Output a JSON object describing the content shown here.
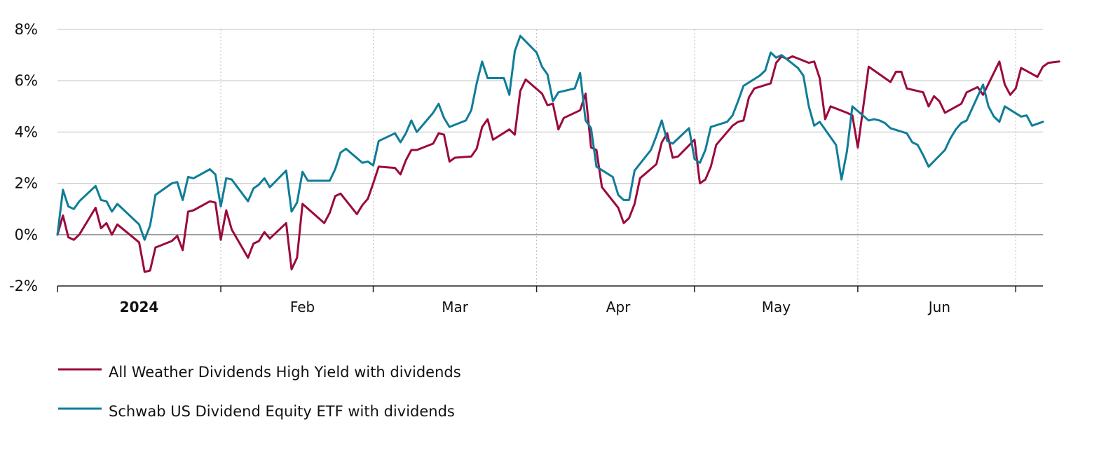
{
  "chart_data": {
    "type": "line",
    "title": "",
    "xlabel": "",
    "ylabel": "",
    "ylim": [
      -2,
      8
    ],
    "y_ticks": [
      {
        "value": 8,
        "label": "8%"
      },
      {
        "value": 6,
        "label": "6%"
      },
      {
        "value": 4,
        "label": "4%"
      },
      {
        "value": 2,
        "label": "2%"
      },
      {
        "value": 0,
        "label": "0%"
      },
      {
        "value": -2,
        "label": "-2%"
      }
    ],
    "x_day_range": [
      0,
      181
    ],
    "x_ticks": [
      {
        "day": 0,
        "label": "",
        "bold": false
      },
      {
        "day": 30,
        "label": "",
        "bold": false
      },
      {
        "day": 58,
        "label": "",
        "bold": false
      },
      {
        "day": 88,
        "label": "",
        "bold": false
      },
      {
        "day": 117,
        "label": "",
        "bold": false
      },
      {
        "day": 147,
        "label": "",
        "bold": false
      },
      {
        "day": 176,
        "label": "",
        "bold": false
      }
    ],
    "x_labels": [
      {
        "day": 15,
        "label": "2024",
        "bold": true
      },
      {
        "day": 45,
        "label": "Feb",
        "bold": false
      },
      {
        "day": 73,
        "label": "Mar",
        "bold": false
      },
      {
        "day": 103,
        "label": "Apr",
        "bold": false
      },
      {
        "day": 132,
        "label": "May",
        "bold": false
      },
      {
        "day": 162,
        "label": "Jun",
        "bold": false
      }
    ],
    "series": [
      {
        "name": "All Weather Dividends High Yield with dividends",
        "color": "#9b0a3e",
        "points": [
          [
            0,
            0.0
          ],
          [
            1,
            0.75
          ],
          [
            2,
            -0.1
          ],
          [
            3,
            -0.2
          ],
          [
            4,
            0.0
          ],
          [
            7,
            1.05
          ],
          [
            8,
            0.25
          ],
          [
            9,
            0.45
          ],
          [
            10,
            0.0
          ],
          [
            11,
            0.4
          ],
          [
            15,
            -0.3
          ],
          [
            16,
            -1.45
          ],
          [
            17,
            -1.4
          ],
          [
            18,
            -0.5
          ],
          [
            21,
            -0.25
          ],
          [
            22,
            -0.05
          ],
          [
            23,
            -0.6
          ],
          [
            24,
            0.9
          ],
          [
            25,
            0.95
          ],
          [
            28,
            1.3
          ],
          [
            29,
            1.25
          ],
          [
            30,
            -0.2
          ],
          [
            31,
            0.95
          ],
          [
            32,
            0.2
          ],
          [
            35,
            -0.9
          ],
          [
            36,
            -0.35
          ],
          [
            37,
            -0.25
          ],
          [
            38,
            0.1
          ],
          [
            39,
            -0.15
          ],
          [
            42,
            0.45
          ],
          [
            43,
            -1.35
          ],
          [
            44,
            -0.9
          ],
          [
            45,
            1.2
          ],
          [
            49,
            0.45
          ],
          [
            50,
            0.85
          ],
          [
            51,
            1.5
          ],
          [
            52,
            1.6
          ],
          [
            55,
            0.8
          ],
          [
            56,
            1.15
          ],
          [
            57,
            1.4
          ],
          [
            58,
            2.0
          ],
          [
            59,
            2.65
          ],
          [
            62,
            2.6
          ],
          [
            63,
            2.35
          ],
          [
            64,
            2.9
          ],
          [
            65,
            3.3
          ],
          [
            66,
            3.3
          ],
          [
            69,
            3.55
          ],
          [
            70,
            3.95
          ],
          [
            71,
            3.9
          ],
          [
            72,
            2.85
          ],
          [
            73,
            3.0
          ],
          [
            76,
            3.05
          ],
          [
            77,
            3.35
          ],
          [
            78,
            4.2
          ],
          [
            79,
            4.5
          ],
          [
            80,
            3.7
          ],
          [
            83,
            4.1
          ],
          [
            84,
            3.9
          ],
          [
            85,
            5.6
          ],
          [
            86,
            6.05
          ],
          [
            89,
            5.5
          ],
          [
            90,
            5.05
          ],
          [
            91,
            5.1
          ],
          [
            92,
            4.1
          ],
          [
            93,
            4.55
          ],
          [
            96,
            4.85
          ],
          [
            97,
            5.5
          ],
          [
            98,
            3.4
          ],
          [
            99,
            3.3
          ],
          [
            100,
            1.85
          ],
          [
            103,
            1.05
          ],
          [
            104,
            0.45
          ],
          [
            105,
            0.65
          ],
          [
            106,
            1.2
          ],
          [
            107,
            2.2
          ],
          [
            110,
            2.75
          ],
          [
            111,
            3.6
          ],
          [
            112,
            3.95
          ],
          [
            113,
            3.0
          ],
          [
            114,
            3.05
          ],
          [
            117,
            3.7
          ],
          [
            118,
            2.0
          ],
          [
            119,
            2.15
          ],
          [
            120,
            2.65
          ],
          [
            121,
            3.5
          ],
          [
            124,
            4.25
          ],
          [
            125,
            4.4
          ],
          [
            126,
            4.45
          ],
          [
            127,
            5.35
          ],
          [
            128,
            5.7
          ],
          [
            131,
            5.9
          ],
          [
            132,
            6.7
          ],
          [
            133,
            6.95
          ],
          [
            134,
            6.85
          ],
          [
            135,
            6.95
          ],
          [
            138,
            6.7
          ],
          [
            139,
            6.75
          ],
          [
            140,
            6.1
          ],
          [
            141,
            4.5
          ],
          [
            142,
            5.0
          ],
          [
            145,
            4.75
          ],
          [
            146,
            4.65
          ],
          [
            147,
            3.4
          ],
          [
            149,
            6.55
          ],
          [
            152,
            6.1
          ],
          [
            153,
            5.95
          ],
          [
            154,
            6.35
          ],
          [
            155,
            6.35
          ],
          [
            156,
            5.7
          ],
          [
            159,
            5.55
          ],
          [
            160,
            5.0
          ],
          [
            161,
            5.4
          ],
          [
            162,
            5.2
          ],
          [
            163,
            4.75
          ],
          [
            166,
            5.1
          ],
          [
            167,
            5.55
          ],
          [
            168,
            5.65
          ],
          [
            169,
            5.75
          ],
          [
            170,
            5.45
          ],
          [
            173,
            6.75
          ],
          [
            174,
            5.85
          ],
          [
            175,
            5.45
          ],
          [
            176,
            5.7
          ],
          [
            177,
            6.5
          ],
          [
            180,
            6.15
          ],
          [
            181,
            6.55
          ],
          [
            182,
            6.7
          ],
          [
            184,
            6.75
          ]
        ]
      },
      {
        "name": "Schwab US Dividend Equity ETF with dividends",
        "color": "#0f7d98",
        "points": [
          [
            0,
            0.0
          ],
          [
            1,
            1.75
          ],
          [
            2,
            1.1
          ],
          [
            3,
            1.0
          ],
          [
            4,
            1.3
          ],
          [
            7,
            1.9
          ],
          [
            8,
            1.35
          ],
          [
            9,
            1.3
          ],
          [
            10,
            0.9
          ],
          [
            11,
            1.2
          ],
          [
            15,
            0.4
          ],
          [
            16,
            -0.2
          ],
          [
            17,
            0.35
          ],
          [
            18,
            1.55
          ],
          [
            21,
            2.0
          ],
          [
            22,
            2.05
          ],
          [
            23,
            1.35
          ],
          [
            24,
            2.25
          ],
          [
            25,
            2.2
          ],
          [
            28,
            2.55
          ],
          [
            29,
            2.35
          ],
          [
            30,
            1.1
          ],
          [
            31,
            2.2
          ],
          [
            32,
            2.15
          ],
          [
            35,
            1.3
          ],
          [
            36,
            1.8
          ],
          [
            37,
            1.95
          ],
          [
            38,
            2.2
          ],
          [
            39,
            1.85
          ],
          [
            42,
            2.5
          ],
          [
            43,
            0.9
          ],
          [
            44,
            1.25
          ],
          [
            45,
            2.45
          ],
          [
            46,
            2.1
          ],
          [
            50,
            2.1
          ],
          [
            51,
            2.55
          ],
          [
            52,
            3.2
          ],
          [
            53,
            3.35
          ],
          [
            56,
            2.8
          ],
          [
            57,
            2.85
          ],
          [
            58,
            2.7
          ],
          [
            59,
            3.65
          ],
          [
            62,
            3.95
          ],
          [
            63,
            3.6
          ],
          [
            64,
            3.95
          ],
          [
            65,
            4.45
          ],
          [
            66,
            4.0
          ],
          [
            69,
            4.75
          ],
          [
            70,
            5.1
          ],
          [
            71,
            4.55
          ],
          [
            72,
            4.2
          ],
          [
            75,
            4.45
          ],
          [
            76,
            4.85
          ],
          [
            77,
            5.9
          ],
          [
            78,
            6.75
          ],
          [
            79,
            6.1
          ],
          [
            82,
            6.1
          ],
          [
            83,
            5.45
          ],
          [
            84,
            7.15
          ],
          [
            85,
            7.75
          ],
          [
            88,
            7.1
          ],
          [
            89,
            6.55
          ],
          [
            90,
            6.25
          ],
          [
            91,
            5.2
          ],
          [
            92,
            5.55
          ],
          [
            95,
            5.7
          ],
          [
            96,
            6.3
          ],
          [
            97,
            4.45
          ],
          [
            98,
            4.15
          ],
          [
            99,
            2.65
          ],
          [
            102,
            2.25
          ],
          [
            103,
            1.55
          ],
          [
            104,
            1.35
          ],
          [
            105,
            1.35
          ],
          [
            106,
            2.5
          ],
          [
            109,
            3.3
          ],
          [
            110,
            3.85
          ],
          [
            111,
            4.45
          ],
          [
            112,
            3.65
          ],
          [
            113,
            3.55
          ],
          [
            116,
            4.15
          ],
          [
            117,
            2.95
          ],
          [
            118,
            2.8
          ],
          [
            119,
            3.3
          ],
          [
            120,
            4.2
          ],
          [
            123,
            4.4
          ],
          [
            124,
            4.65
          ],
          [
            125,
            5.2
          ],
          [
            126,
            5.8
          ],
          [
            129,
            6.2
          ],
          [
            130,
            6.4
          ],
          [
            131,
            7.1
          ],
          [
            132,
            6.9
          ],
          [
            133,
            7.0
          ],
          [
            136,
            6.5
          ],
          [
            137,
            6.2
          ],
          [
            138,
            5.0
          ],
          [
            139,
            4.25
          ],
          [
            140,
            4.4
          ],
          [
            143,
            3.5
          ],
          [
            144,
            2.15
          ],
          [
            145,
            3.25
          ],
          [
            146,
            5.0
          ],
          [
            149,
            4.45
          ],
          [
            150,
            4.5
          ],
          [
            151,
            4.45
          ],
          [
            152,
            4.35
          ],
          [
            153,
            4.15
          ],
          [
            156,
            3.95
          ],
          [
            157,
            3.6
          ],
          [
            158,
            3.5
          ],
          [
            159,
            3.1
          ],
          [
            160,
            2.65
          ],
          [
            163,
            3.3
          ],
          [
            164,
            3.75
          ],
          [
            165,
            4.1
          ],
          [
            166,
            4.35
          ],
          [
            167,
            4.45
          ],
          [
            170,
            5.85
          ],
          [
            171,
            5.0
          ],
          [
            172,
            4.6
          ],
          [
            173,
            4.4
          ],
          [
            174,
            5.0
          ],
          [
            177,
            4.6
          ],
          [
            178,
            4.65
          ],
          [
            179,
            4.25
          ],
          [
            181,
            4.4
          ]
        ]
      }
    ]
  }
}
